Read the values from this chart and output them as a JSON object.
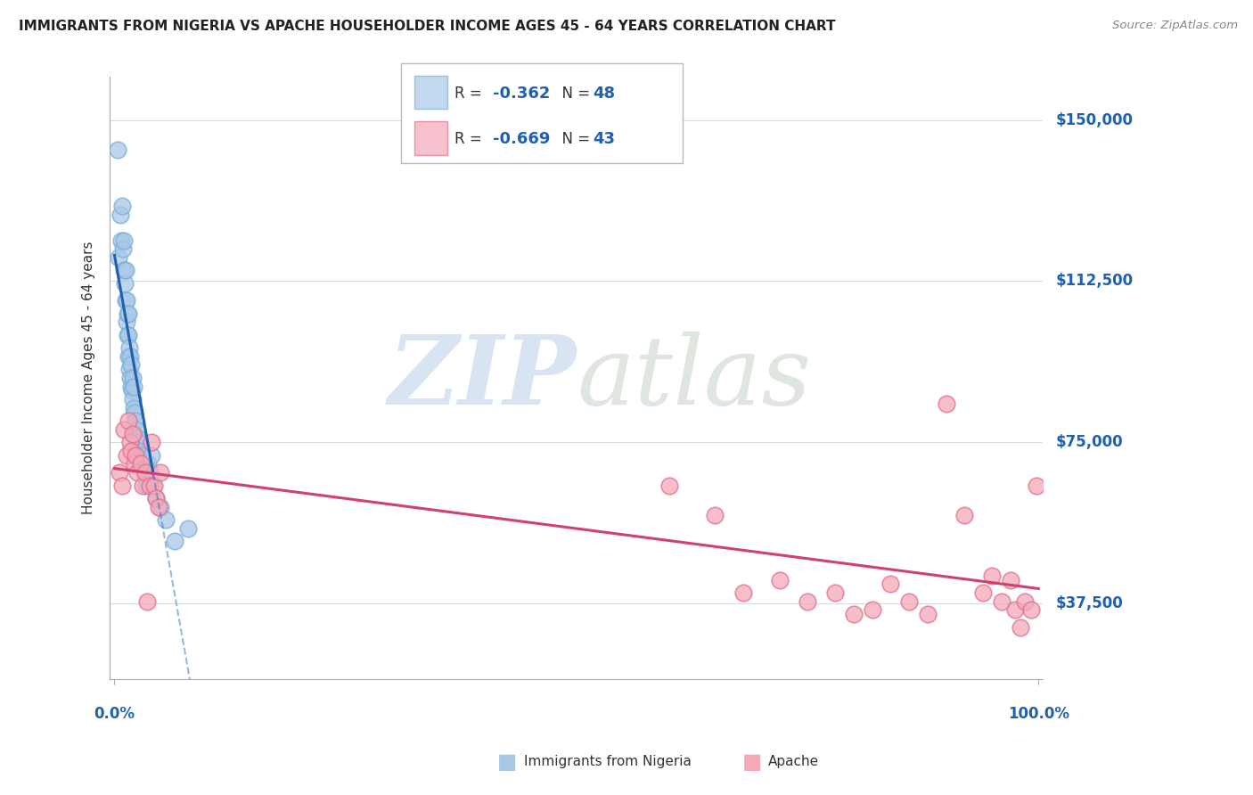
{
  "title": "IMMIGRANTS FROM NIGERIA VS APACHE HOUSEHOLDER INCOME AGES 45 - 64 YEARS CORRELATION CHART",
  "source": "Source: ZipAtlas.com",
  "ylabel": "Householder Income Ages 45 - 64 years",
  "ytick_labels": [
    "$37,500",
    "$75,000",
    "$112,500",
    "$150,000"
  ],
  "ytick_values": [
    37500,
    75000,
    112500,
    150000
  ],
  "ylim": [
    20000,
    160000
  ],
  "xlim": [
    -0.005,
    1.005
  ],
  "legend1_R": "-0.362",
  "legend1_N": "48",
  "legend2_R": "-0.669",
  "legend2_N": "43",
  "blue_color": "#a8c8e8",
  "blue_edge_color": "#7bafd4",
  "pink_color": "#f4a8b8",
  "pink_edge_color": "#e07090",
  "blue_line_color": "#2060b0",
  "pink_line_color": "#d04070",
  "nigeria_x": [
    0.003,
    0.004,
    0.006,
    0.007,
    0.008,
    0.009,
    0.01,
    0.01,
    0.011,
    0.012,
    0.012,
    0.013,
    0.013,
    0.014,
    0.014,
    0.015,
    0.015,
    0.015,
    0.016,
    0.016,
    0.017,
    0.017,
    0.018,
    0.018,
    0.019,
    0.02,
    0.02,
    0.021,
    0.021,
    0.022,
    0.023,
    0.024,
    0.025,
    0.026,
    0.027,
    0.028,
    0.03,
    0.032,
    0.034,
    0.036,
    0.038,
    0.04,
    0.042,
    0.045,
    0.05,
    0.055,
    0.065,
    0.08
  ],
  "nigeria_y": [
    143000,
    118000,
    128000,
    122000,
    130000,
    120000,
    115000,
    122000,
    112000,
    108000,
    115000,
    103000,
    108000,
    100000,
    105000,
    95000,
    100000,
    105000,
    92000,
    97000,
    90000,
    95000,
    88000,
    93000,
    87000,
    85000,
    90000,
    83000,
    88000,
    82000,
    80000,
    78000,
    76000,
    75000,
    73000,
    72000,
    70000,
    68000,
    65000,
    70000,
    68000,
    72000,
    65000,
    62000,
    60000,
    57000,
    52000,
    55000
  ],
  "apache_x": [
    0.005,
    0.008,
    0.01,
    0.013,
    0.015,
    0.017,
    0.018,
    0.02,
    0.022,
    0.023,
    0.025,
    0.028,
    0.03,
    0.033,
    0.035,
    0.038,
    0.04,
    0.043,
    0.045,
    0.048,
    0.05,
    0.6,
    0.65,
    0.68,
    0.72,
    0.75,
    0.78,
    0.8,
    0.82,
    0.84,
    0.86,
    0.88,
    0.9,
    0.92,
    0.94,
    0.95,
    0.96,
    0.97,
    0.975,
    0.98,
    0.985,
    0.992,
    0.998
  ],
  "apache_y": [
    68000,
    65000,
    78000,
    72000,
    80000,
    75000,
    73000,
    77000,
    70000,
    72000,
    68000,
    70000,
    65000,
    68000,
    38000,
    65000,
    75000,
    65000,
    62000,
    60000,
    68000,
    65000,
    58000,
    40000,
    43000,
    38000,
    40000,
    35000,
    36000,
    42000,
    38000,
    35000,
    84000,
    58000,
    40000,
    44000,
    38000,
    43000,
    36000,
    32000,
    38000,
    36000,
    65000
  ]
}
